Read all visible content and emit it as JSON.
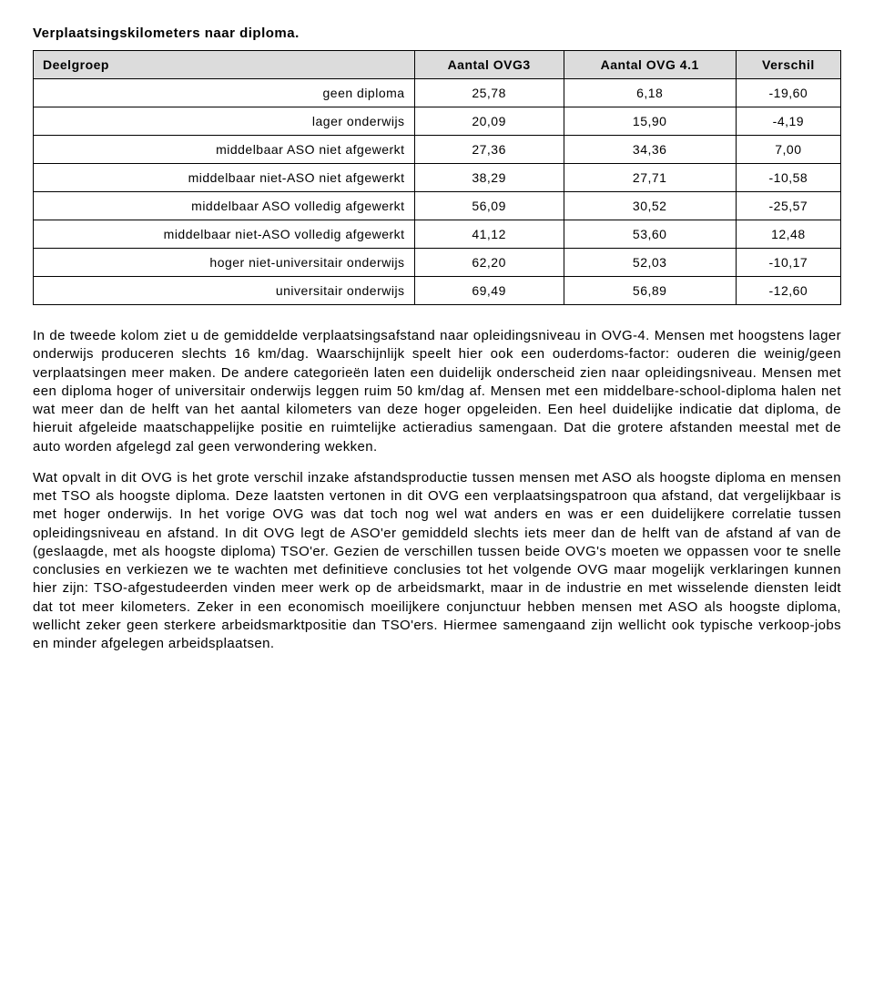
{
  "title": "Verplaatsingskilometers naar diploma.",
  "table": {
    "columns": [
      "Deelgroep",
      "Aantal OVG3",
      "Aantal OVG 4.1",
      "Verschil"
    ],
    "rows": [
      {
        "label": "geen diploma",
        "v1": "25,78",
        "v2": "6,18",
        "v3": "-19,60"
      },
      {
        "label": "lager onderwijs",
        "v1": "20,09",
        "v2": "15,90",
        "v3": "-4,19"
      },
      {
        "label": "middelbaar ASO niet afgewerkt",
        "v1": "27,36",
        "v2": "34,36",
        "v3": "7,00"
      },
      {
        "label": "middelbaar niet-ASO niet afgewerkt",
        "v1": "38,29",
        "v2": "27,71",
        "v3": "-10,58"
      },
      {
        "label": "middelbaar ASO volledig afgewerkt",
        "v1": "56,09",
        "v2": "30,52",
        "v3": "-25,57"
      },
      {
        "label": "middelbaar niet-ASO volledig afgewerkt",
        "v1": "41,12",
        "v2": "53,60",
        "v3": "12,48"
      },
      {
        "label": "hoger niet-universitair onderwijs",
        "v1": "62,20",
        "v2": "52,03",
        "v3": "-10,17"
      },
      {
        "label": "universitair onderwijs",
        "v1": "69,49",
        "v2": "56,89",
        "v3": "-12,60"
      }
    ]
  },
  "paragraphs": [
    "In de tweede kolom ziet u de gemiddelde verplaatsingsafstand naar opleidingsniveau in OVG-4. Mensen met hoogstens lager onderwijs produceren slechts 16 km/dag. Waarschijnlijk speelt hier ook een ouderdoms-factor: ouderen die weinig/geen verplaatsingen meer maken. De andere categorieën laten een duidelijk onderscheid zien naar opleidingsniveau. Mensen met een diploma hoger of universitair onderwijs leggen ruim 50 km/dag af. Mensen met een middelbare-school-diploma halen net wat meer dan de helft van het aantal kilometers van deze hoger opgeleiden. Een heel duidelijke indicatie dat diploma, de hieruit afgeleide maatschappelijke positie en ruimtelijke actieradius samengaan. Dat die grotere afstanden meestal met de auto worden afgelegd zal geen verwondering wekken.",
    "Wat opvalt in dit OVG is het grote verschil inzake afstandsproductie tussen mensen met ASO als hoogste diploma en mensen met TSO als hoogste diploma. Deze laatsten vertonen in dit OVG een verplaatsingspatroon qua afstand, dat vergelijkbaar is met hoger onderwijs. In het vorige OVG was dat toch nog wel wat anders en was er een duidelijkere correlatie tussen opleidingsniveau en afstand. In dit OVG legt de ASO'er gemiddeld slechts iets meer dan de helft van de afstand af van de (geslaagde, met als hoogste diploma) TSO'er. Gezien de verschillen tussen beide OVG's moeten we oppassen voor te snelle conclusies en verkiezen we te wachten met definitieve conclusies tot het volgende OVG maar mogelijk verklaringen kunnen hier zijn: TSO-afgestudeerden vinden meer werk op de arbeidsmarkt, maar in de industrie en met wisselende diensten leidt dat tot meer kilometers. Zeker in een economisch moeilijkere conjunctuur hebben mensen met ASO als hoogste diploma, wellicht zeker geen sterkere arbeidsmarktpositie dan TSO'ers. Hiermee samengaand zijn wellicht ook typische verkoop-jobs en minder afgelegen arbeidsplaatsen."
  ]
}
